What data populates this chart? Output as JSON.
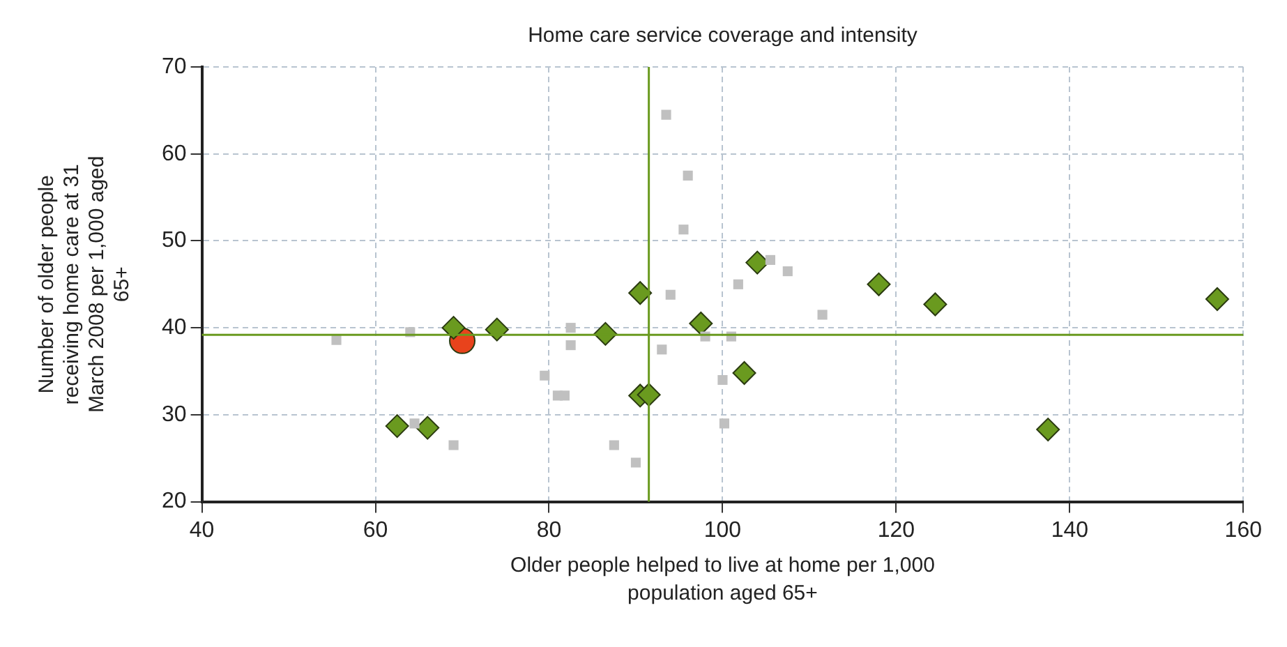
{
  "chart_data": {
    "type": "scatter",
    "title": "Home care service coverage and intensity",
    "xlabel": "Older people helped to live at home per 1,000 population aged 65+",
    "ylabel": "Number of older people receiving home care at 31 March 2008 per 1,000 aged 65+",
    "xlim": [
      40,
      160
    ],
    "xticks": [
      40,
      60,
      80,
      100,
      120,
      140,
      160
    ],
    "ylim": [
      20,
      70
    ],
    "yticks": [
      20,
      30,
      40,
      50,
      60,
      70
    ],
    "grid": true,
    "legend": false,
    "series": [
      {
        "color": "#c0c0c0",
        "marker": "square",
        "x": [
          55.5,
          64,
          64.5,
          69,
          79.5,
          81,
          81.8,
          82.5,
          82.5,
          87.5,
          90,
          93,
          93.5,
          94,
          95.5,
          96,
          98,
          100,
          100.2,
          101,
          101.8,
          105.5,
          107.5,
          111.5
        ],
        "values": [
          38.6,
          39.5,
          29,
          26.5,
          34.5,
          32.2,
          32.2,
          40,
          38,
          26.5,
          24.5,
          37.5,
          64.5,
          43.8,
          51.3,
          57.5,
          39,
          34,
          29,
          39,
          45,
          47.8,
          46.5,
          41.5
        ]
      },
      {
        "color": "#6a9a1f",
        "marker": "diamond",
        "x": [
          62.5,
          66,
          69,
          74,
          86.5,
          90.5,
          90.5,
          91.5,
          97.5,
          102.5,
          104,
          118,
          124.5,
          137.5,
          157
        ],
        "values": [
          28.7,
          28.5,
          40,
          39.8,
          39.3,
          44,
          32.2,
          32.3,
          40.5,
          34.8,
          47.5,
          45,
          42.7,
          28.3,
          43.3
        ]
      },
      {
        "color": "#e8431c",
        "marker": "circle",
        "x": [
          70
        ],
        "values": [
          38.5
        ]
      }
    ],
    "ref_lines": [
      {
        "axis": "x",
        "value": 91.5,
        "color": "#6a9a1f"
      },
      {
        "axis": "y",
        "value": 39.2,
        "color": "#6a9a1f"
      }
    ]
  }
}
